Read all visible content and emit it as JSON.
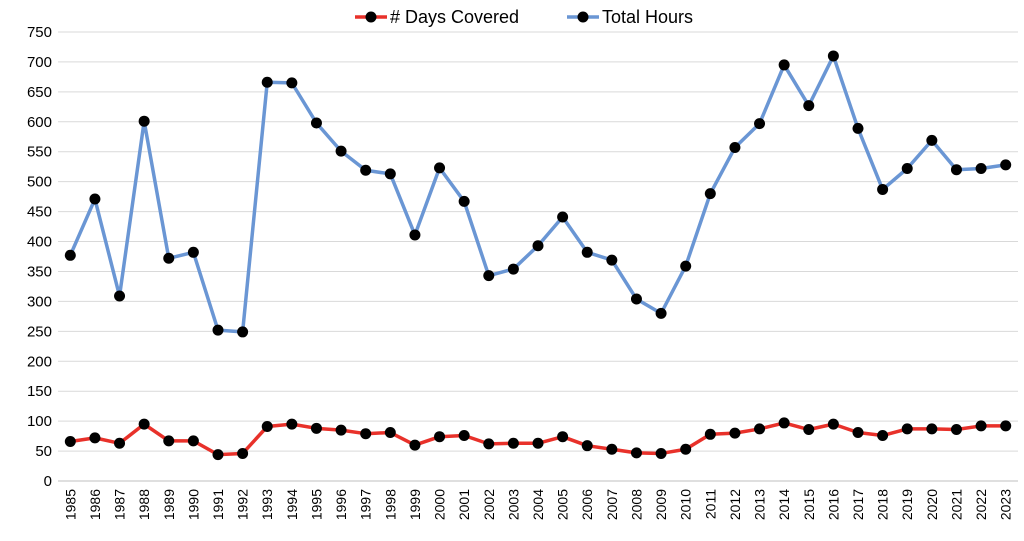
{
  "chart_data": {
    "type": "line",
    "title": "",
    "xlabel": "",
    "ylabel": "",
    "ylim": [
      0,
      750
    ],
    "yticks": [
      0,
      50,
      100,
      150,
      200,
      250,
      300,
      350,
      400,
      450,
      500,
      550,
      600,
      650,
      700,
      750
    ],
    "grid": "horizontal",
    "legend_position": "top-center",
    "x": [
      "1985",
      "1986",
      "1987",
      "1988",
      "1989",
      "1990",
      "1991",
      "1992",
      "1993",
      "1994",
      "1995",
      "1996",
      "1997",
      "1998",
      "1999",
      "2000",
      "2001",
      "2002",
      "2003",
      "2004",
      "2005",
      "2006",
      "2007",
      "2008",
      "2009",
      "2010",
      "2011",
      "2012",
      "2013",
      "2014",
      "2015",
      "2016",
      "2017",
      "2018",
      "2019",
      "2020",
      "2021",
      "2022",
      "2023"
    ],
    "series": [
      {
        "name": "# Days Covered",
        "color": "#e8312a",
        "values": [
          66,
          72,
          63,
          95,
          67,
          67,
          44,
          46,
          91,
          95,
          88,
          85,
          79,
          81,
          60,
          74,
          76,
          62,
          63,
          63,
          74,
          59,
          53,
          47,
          46,
          53,
          78,
          80,
          87,
          97,
          86,
          95,
          81,
          76,
          87,
          87,
          86,
          92,
          92
        ]
      },
      {
        "name": "Total Hours",
        "color": "#6a96d4",
        "values": [
          377,
          471,
          309,
          601,
          372,
          382,
          252,
          249,
          666,
          665,
          598,
          551,
          519,
          513,
          411,
          523,
          467,
          343,
          354,
          393,
          441,
          382,
          369,
          304,
          280,
          359,
          480,
          557,
          597,
          695,
          627,
          710,
          589,
          487,
          522,
          569,
          520,
          522,
          528
        ]
      }
    ]
  }
}
